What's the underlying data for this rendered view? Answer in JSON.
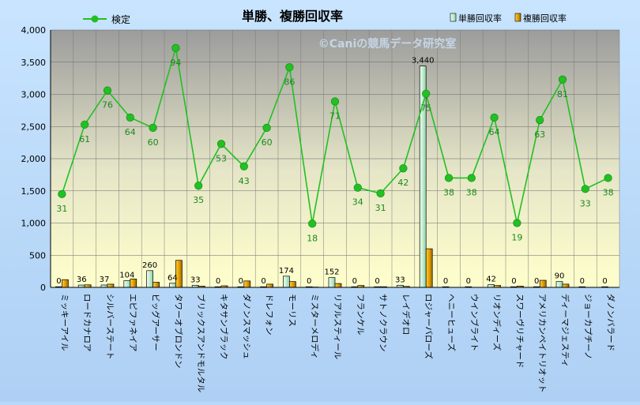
{
  "chart_data": {
    "type": "bar",
    "title": "単勝、複勝回収率",
    "watermark": "©Caniの競馬データ研究室",
    "ylim": [
      0,
      4000
    ],
    "yticks": [
      "0",
      "500",
      "1,000",
      "1,500",
      "2,000",
      "2,500",
      "3,000",
      "3,500",
      "4,000"
    ],
    "grid": true,
    "legend_position": "top",
    "categories": [
      "ミッキーアイル",
      "ロードカナロア",
      "シルバーステート",
      "エピファネイア",
      "ビッグアーサー",
      "タワーオブロンドン",
      "ブリックスアンドモルタル",
      "キタサンブラック",
      "ダノンスマッシュ",
      "ドレフォン",
      "モーリス",
      "ミスターメロディ",
      "リアルスティール",
      "フランケル",
      "サトノクラウン",
      "レイデオロ",
      "ロジャーバローズ",
      "ヘニーヒューズ",
      "ウインブライト",
      "リオンディーズ",
      "スワーヴリチャード",
      "アメリカンペイトリオット",
      "ディーマジェスティ",
      "ジョーカプチーノ",
      "ダノンバラード"
    ],
    "series": [
      {
        "name": "単勝回収率",
        "kind": "bar",
        "color": "#ccf2d8",
        "values": [
          0,
          36,
          37,
          104,
          260,
          64,
          33,
          0,
          0,
          0,
          174,
          0,
          152,
          0,
          0,
          33,
          3440,
          0,
          0,
          42,
          0,
          0,
          90,
          0,
          0
        ],
        "labels": [
          "0",
          "36",
          "37",
          "104",
          "260",
          "64",
          "33",
          "0",
          "0",
          "0",
          "174",
          "0",
          "152",
          "0",
          "0",
          "33",
          "3,440",
          "0",
          "0",
          "42",
          "0",
          "0",
          "90",
          "0",
          "0"
        ]
      },
      {
        "name": "複勝回収率",
        "kind": "bar",
        "color": "#e8a800",
        "values": [
          120,
          40,
          50,
          130,
          80,
          420,
          20,
          25,
          100,
          50,
          90,
          5,
          60,
          30,
          10,
          15,
          600,
          0,
          0,
          30,
          20,
          110,
          50,
          0,
          0
        ]
      },
      {
        "name": "検定",
        "kind": "line",
        "color": "#22c022",
        "values": [
          1450,
          2530,
          3060,
          2640,
          2480,
          3720,
          1580,
          2230,
          1880,
          2480,
          3420,
          990,
          2890,
          1550,
          1460,
          1850,
          3010,
          1700,
          1700,
          2640,
          1000,
          2600,
          3230,
          1530,
          1700
        ],
        "labels": [
          "31",
          "61",
          "76",
          "64",
          "60",
          "94",
          "35",
          "53",
          "43",
          "60",
          "86",
          "18",
          "71",
          "34",
          "31",
          "42",
          "75",
          "38",
          "38",
          "64",
          "19",
          "63",
          "81",
          "33",
          "38"
        ]
      }
    ]
  }
}
